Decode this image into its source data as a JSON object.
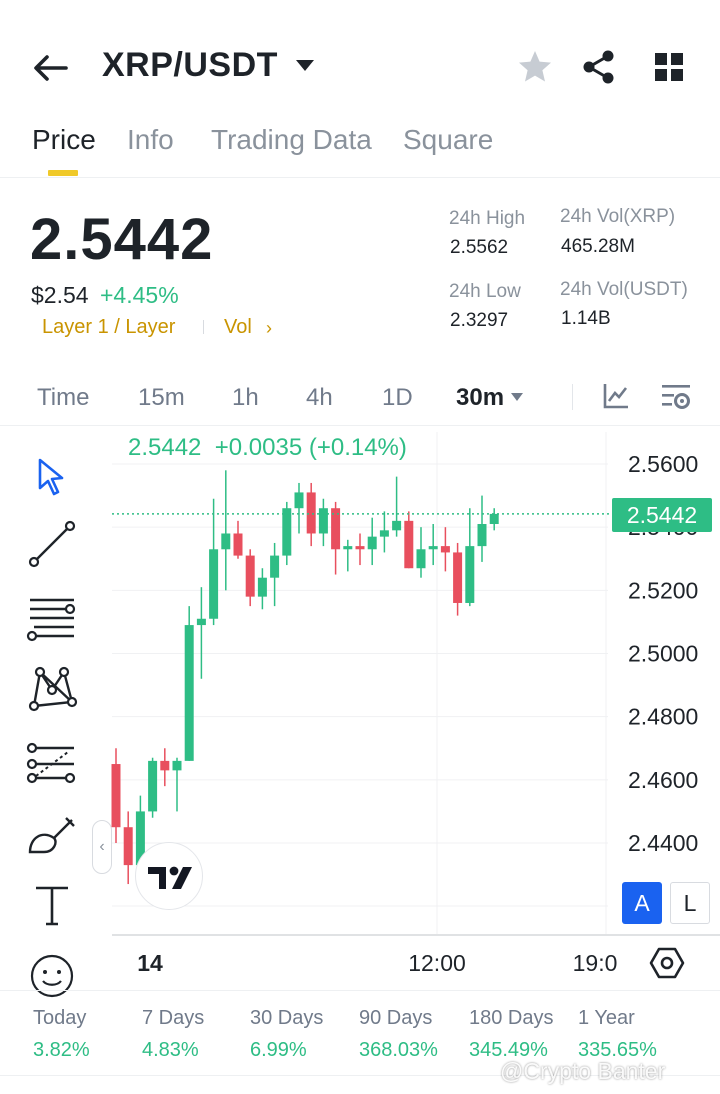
{
  "header": {
    "pair": "XRP/USDT"
  },
  "tabs": [
    "Price",
    "Info",
    "Trading Data",
    "Square"
  ],
  "ticker": {
    "last_price": "2.5442",
    "usd_price": "$2.54",
    "change_pct": "+4.45%",
    "tag": "Layer 1 / Layer",
    "vol_link": "Vol",
    "high_label": "24h High",
    "high_value": "2.5562",
    "low_label": "24h Low",
    "low_value": "2.3297",
    "vol_base_label": "24h Vol(XRP)",
    "vol_base_value": "465.28M",
    "vol_quote_label": "24h Vol(USDT)",
    "vol_quote_value": "1.14B"
  },
  "intervals": [
    "Time",
    "15m",
    "1h",
    "4h",
    "1D",
    "30m"
  ],
  "selected_interval": "30m",
  "chart": {
    "ohlc_readout": "2.5442  +0.0035 (+0.14%)",
    "last_price_badge": "2.5442",
    "y_ticks": [
      "2.5600",
      "2.5400",
      "2.5200",
      "2.5000",
      "2.4800",
      "2.4600",
      "2.4400"
    ],
    "x_ticks": [
      "14",
      "12:00",
      "19:0"
    ],
    "scale_auto": "A",
    "scale_log": "L",
    "up_color": "#2ebd85",
    "down_color": "#e84f5e"
  },
  "chart_data": {
    "type": "candlestick",
    "interval": "30m",
    "ylim": [
      2.425,
      2.575
    ],
    "last_price": 2.5442,
    "candles": [
      {
        "o": 2.465,
        "h": 2.47,
        "l": 2.44,
        "c": 2.445
      },
      {
        "o": 2.445,
        "h": 2.45,
        "l": 2.427,
        "c": 2.433
      },
      {
        "o": 2.433,
        "h": 2.455,
        "l": 2.43,
        "c": 2.45
      },
      {
        "o": 2.45,
        "h": 2.467,
        "l": 2.448,
        "c": 2.466
      },
      {
        "o": 2.466,
        "h": 2.47,
        "l": 2.458,
        "c": 2.463
      },
      {
        "o": 2.463,
        "h": 2.467,
        "l": 2.45,
        "c": 2.466
      },
      {
        "o": 2.466,
        "h": 2.515,
        "l": 2.466,
        "c": 2.509
      },
      {
        "o": 2.509,
        "h": 2.521,
        "l": 2.492,
        "c": 2.511
      },
      {
        "o": 2.511,
        "h": 2.549,
        "l": 2.509,
        "c": 2.533
      },
      {
        "o": 2.533,
        "h": 2.558,
        "l": 2.52,
        "c": 2.538
      },
      {
        "o": 2.538,
        "h": 2.542,
        "l": 2.53,
        "c": 2.531
      },
      {
        "o": 2.531,
        "h": 2.533,
        "l": 2.515,
        "c": 2.518
      },
      {
        "o": 2.518,
        "h": 2.527,
        "l": 2.514,
        "c": 2.524
      },
      {
        "o": 2.524,
        "h": 2.535,
        "l": 2.515,
        "c": 2.531
      },
      {
        "o": 2.531,
        "h": 2.548,
        "l": 2.528,
        "c": 2.546
      },
      {
        "o": 2.546,
        "h": 2.554,
        "l": 2.538,
        "c": 2.551
      },
      {
        "o": 2.551,
        "h": 2.554,
        "l": 2.534,
        "c": 2.538
      },
      {
        "o": 2.538,
        "h": 2.549,
        "l": 2.534,
        "c": 2.546
      },
      {
        "o": 2.546,
        "h": 2.548,
        "l": 2.525,
        "c": 2.533
      },
      {
        "o": 2.533,
        "h": 2.536,
        "l": 2.526,
        "c": 2.534
      },
      {
        "o": 2.534,
        "h": 2.538,
        "l": 2.528,
        "c": 2.533
      },
      {
        "o": 2.533,
        "h": 2.543,
        "l": 2.528,
        "c": 2.537
      },
      {
        "o": 2.537,
        "h": 2.545,
        "l": 2.532,
        "c": 2.539
      },
      {
        "o": 2.539,
        "h": 2.556,
        "l": 2.537,
        "c": 2.542
      },
      {
        "o": 2.542,
        "h": 2.545,
        "l": 2.527,
        "c": 2.527
      },
      {
        "o": 2.527,
        "h": 2.54,
        "l": 2.524,
        "c": 2.533
      },
      {
        "o": 2.533,
        "h": 2.541,
        "l": 2.528,
        "c": 2.534
      },
      {
        "o": 2.534,
        "h": 2.54,
        "l": 2.526,
        "c": 2.532
      },
      {
        "o": 2.532,
        "h": 2.535,
        "l": 2.512,
        "c": 2.516
      },
      {
        "o": 2.516,
        "h": 2.546,
        "l": 2.515,
        "c": 2.534
      },
      {
        "o": 2.534,
        "h": 2.55,
        "l": 2.529,
        "c": 2.541
      },
      {
        "o": 2.541,
        "h": 2.546,
        "l": 2.539,
        "c": 2.5442
      }
    ]
  },
  "performance": [
    {
      "label": "Today",
      "value": "3.82%"
    },
    {
      "label": "7 Days",
      "value": "4.83%"
    },
    {
      "label": "30 Days",
      "value": "6.99%"
    },
    {
      "label": "90 Days",
      "value": "368.03%"
    },
    {
      "label": "180 Days",
      "value": "345.49%"
    },
    {
      "label": "1 Year",
      "value": "335.65%"
    }
  ],
  "watermark": "@Crypto Banter"
}
